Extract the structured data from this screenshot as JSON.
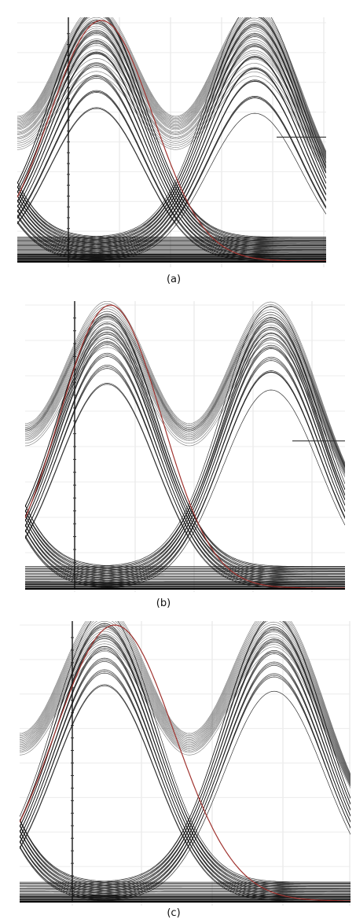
{
  "chart_data": [
    {
      "type": "line",
      "caption": "(a)",
      "period": 2.0,
      "pulse_width": 0.42,
      "pulse_centers": [
        -0.5,
        0.5,
        1.5
      ],
      "upper_peaks": [
        0.66,
        0.68,
        0.7,
        0.72,
        0.74,
        0.76,
        0.77,
        0.78,
        0.8,
        0.81,
        0.82,
        0.83,
        0.85,
        0.86,
        0.87,
        0.88,
        0.89,
        0.9,
        0.91,
        0.92,
        0.93,
        0.94,
        0.95,
        0.96,
        0.97,
        0.98
      ],
      "lower_levels": [
        0.0,
        0.004,
        0.008,
        0.012,
        0.016,
        0.02,
        0.024,
        0.028
      ],
      "overlay": {
        "name": "",
        "color": "#a0332f",
        "peak": 1.01,
        "x_center": 0.53,
        "width": 0.46
      },
      "threshold_level": 0.52,
      "xlim": [
        0.0,
        1.95
      ],
      "ylim": [
        0.0,
        1.0
      ],
      "grid": true
    },
    {
      "type": "line",
      "caption": "(b)",
      "period": 2.0,
      "pulse_width": 0.42,
      "pulse_centers": [
        -0.5,
        0.5,
        1.5
      ],
      "upper_peaks": [
        0.74,
        0.76,
        0.78,
        0.79,
        0.8,
        0.81,
        0.82,
        0.83,
        0.84,
        0.85,
        0.86,
        0.86,
        0.87,
        0.87,
        0.88,
        0.88,
        0.89,
        0.9,
        0.91,
        0.92
      ],
      "lower_levels": [
        0.0,
        0.004,
        0.008,
        0.012,
        0.016,
        0.02
      ],
      "overlay": {
        "name": "",
        "color": "#a0332f",
        "peak": 1.0,
        "x_center": 0.52,
        "width": 0.44
      },
      "threshold_level": 0.52,
      "xlim": [
        0.0,
        1.95
      ],
      "ylim": [
        0.0,
        1.0
      ],
      "grid": true
    },
    {
      "type": "line",
      "caption": "(c)",
      "period": 2.0,
      "pulse_width": 0.42,
      "pulse_centers": [
        -0.5,
        0.5,
        1.5
      ],
      "upper_peaks": [
        0.8,
        0.82,
        0.83,
        0.84,
        0.85,
        0.86,
        0.87,
        0.88,
        0.89,
        0.9,
        0.91,
        0.92,
        0.93,
        0.94,
        0.95,
        0.96,
        0.97,
        0.98
      ],
      "lower_levels": [
        0.0,
        0.004,
        0.008,
        0.012,
        0.016,
        0.02
      ],
      "overlay": {
        "name": "",
        "color": "#a0332f",
        "peak": 1.0,
        "x_center": 0.56,
        "width": 0.5
      },
      "threshold_level": null,
      "xlim": [
        0.0,
        1.95
      ],
      "ylim": [
        0.0,
        1.0
      ],
      "grid": true
    }
  ]
}
